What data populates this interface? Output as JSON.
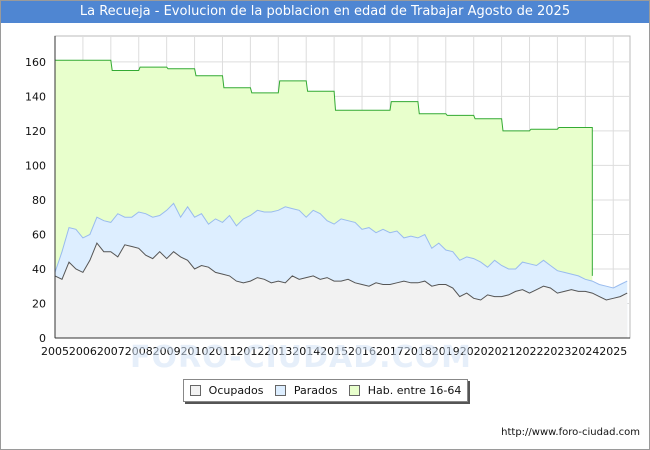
{
  "header": {
    "title": "La Recueja - Evolucion de la poblacion en edad de Trabajar Agosto de 2025"
  },
  "footer": {
    "url": "http://www.foro-ciudad.com"
  },
  "watermark": {
    "text": "FORO-CIUDAD.COM"
  },
  "colors": {
    "title_bg": "#4f86d2",
    "hab_fill": "#e8ffcc",
    "hab_line": "#33aa33",
    "parados_fill": "#ddeeff",
    "parados_line": "#99bbee",
    "ocupados_fill": "#f2f2f2",
    "ocupados_line": "#555555"
  },
  "legend": [
    {
      "label": "Ocupados",
      "color": "#f2f2f2"
    },
    {
      "label": "Parados",
      "color": "#ddeeff"
    },
    {
      "label": "Hab. entre 16-64",
      "color": "#e8ffcc"
    }
  ],
  "chart_data": {
    "type": "area",
    "title": "La Recueja - Evolucion de la poblacion en edad de Trabajar Agosto de 2025",
    "xlabel": "",
    "ylabel": "",
    "xlim": [
      2005,
      2025.6
    ],
    "ylim": [
      0,
      175
    ],
    "yticks": [
      0,
      20,
      40,
      60,
      80,
      100,
      120,
      140,
      160
    ],
    "xticks": [
      "2005",
      "2006",
      "2007",
      "2008",
      "2009",
      "2010",
      "2011",
      "2012",
      "2013",
      "2014",
      "2015",
      "2016",
      "2017",
      "2018",
      "2019",
      "2020",
      "2021",
      "2022",
      "2023",
      "2024",
      "2025"
    ],
    "grid": true,
    "series": [
      {
        "name": "Hab. entre 16-64",
        "step": true,
        "x": [
          2005,
          2006,
          2007,
          2008,
          2009,
          2010,
          2011,
          2012,
          2013,
          2014,
          2015,
          2016,
          2017,
          2018,
          2019,
          2020,
          2021,
          2022,
          2023,
          2024
        ],
        "values": [
          161,
          161,
          155,
          157,
          156,
          152,
          145,
          142,
          149,
          143,
          132,
          132,
          137,
          130,
          129,
          127,
          120,
          121,
          122,
          122
        ]
      },
      {
        "name": "Parados",
        "x": [
          2005,
          2005.25,
          2005.5,
          2005.75,
          2006,
          2006.25,
          2006.5,
          2006.75,
          2007,
          2007.25,
          2007.5,
          2007.75,
          2008,
          2008.25,
          2008.5,
          2008.75,
          2009,
          2009.25,
          2009.5,
          2009.75,
          2010,
          2010.25,
          2010.5,
          2010.75,
          2011,
          2011.25,
          2011.5,
          2011.75,
          2012,
          2012.25,
          2012.5,
          2012.75,
          2013,
          2013.25,
          2013.5,
          2013.75,
          2014,
          2014.25,
          2014.5,
          2014.75,
          2015,
          2015.25,
          2015.5,
          2015.75,
          2016,
          2016.25,
          2016.5,
          2016.75,
          2017,
          2017.25,
          2017.5,
          2017.75,
          2018,
          2018.25,
          2018.5,
          2018.75,
          2019,
          2019.25,
          2019.5,
          2019.75,
          2020,
          2020.25,
          2020.5,
          2020.75,
          2021,
          2021.25,
          2021.5,
          2021.75,
          2022,
          2022.25,
          2022.5,
          2022.75,
          2023,
          2023.25,
          2023.5,
          2023.75,
          2024,
          2024.25,
          2024.5,
          2024.75,
          2025,
          2025.25,
          2025.5
        ],
        "values": [
          38,
          50,
          64,
          63,
          58,
          60,
          70,
          68,
          67,
          72,
          70,
          70,
          73,
          72,
          70,
          71,
          74,
          78,
          70,
          76,
          70,
          72,
          66,
          69,
          67,
          71,
          65,
          69,
          71,
          74,
          73,
          73,
          74,
          76,
          75,
          74,
          70,
          74,
          72,
          68,
          66,
          69,
          68,
          67,
          63,
          64,
          61,
          63,
          61,
          62,
          58,
          59,
          58,
          60,
          52,
          55,
          51,
          50,
          45,
          47,
          46,
          44,
          41,
          45,
          42,
          40,
          40,
          44,
          43,
          42,
          45,
          42,
          39,
          38,
          37,
          36,
          34,
          33,
          31,
          30,
          29,
          31,
          33
        ]
      },
      {
        "name": "Ocupados",
        "x": [
          2005,
          2005.25,
          2005.5,
          2005.75,
          2006,
          2006.25,
          2006.5,
          2006.75,
          2007,
          2007.25,
          2007.5,
          2007.75,
          2008,
          2008.25,
          2008.5,
          2008.75,
          2009,
          2009.25,
          2009.5,
          2009.75,
          2010,
          2010.25,
          2010.5,
          2010.75,
          2011,
          2011.25,
          2011.5,
          2011.75,
          2012,
          2012.25,
          2012.5,
          2012.75,
          2013,
          2013.25,
          2013.5,
          2013.75,
          2014,
          2014.25,
          2014.5,
          2014.75,
          2015,
          2015.25,
          2015.5,
          2015.75,
          2016,
          2016.25,
          2016.5,
          2016.75,
          2017,
          2017.25,
          2017.5,
          2017.75,
          2018,
          2018.25,
          2018.5,
          2018.75,
          2019,
          2019.25,
          2019.5,
          2019.75,
          2020,
          2020.25,
          2020.5,
          2020.75,
          2021,
          2021.25,
          2021.5,
          2021.75,
          2022,
          2022.25,
          2022.5,
          2022.75,
          2023,
          2023.25,
          2023.5,
          2023.75,
          2024,
          2024.25,
          2024.5,
          2024.75,
          2025,
          2025.25,
          2025.5
        ],
        "values": [
          36,
          34,
          44,
          40,
          38,
          45,
          55,
          50,
          50,
          47,
          54,
          53,
          52,
          48,
          46,
          50,
          46,
          50,
          47,
          45,
          40,
          42,
          41,
          38,
          37,
          36,
          33,
          32,
          33,
          35,
          34,
          32,
          33,
          32,
          36,
          34,
          35,
          36,
          34,
          35,
          33,
          33,
          34,
          32,
          31,
          30,
          32,
          31,
          31,
          32,
          33,
          32,
          32,
          33,
          30,
          31,
          31,
          29,
          24,
          26,
          23,
          22,
          25,
          24,
          24,
          25,
          27,
          28,
          26,
          28,
          30,
          29,
          26,
          27,
          28,
          27,
          27,
          26,
          24,
          22,
          23,
          24,
          26
        ]
      }
    ]
  }
}
